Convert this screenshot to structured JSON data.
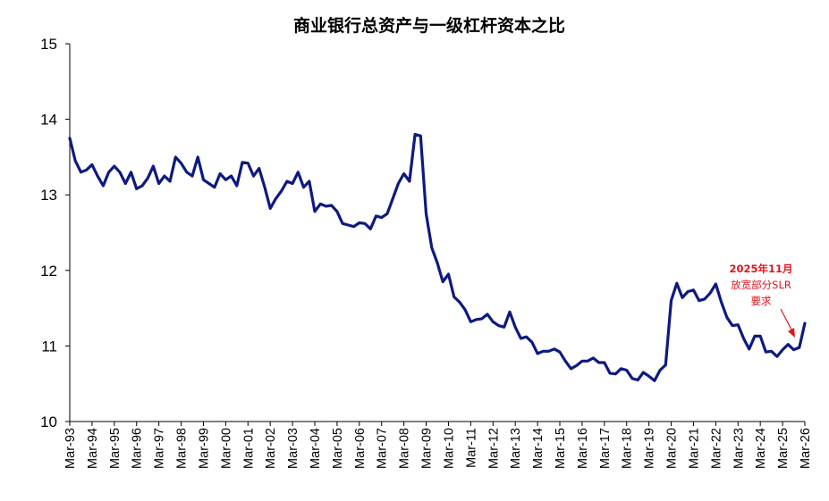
{
  "chart_data": {
    "type": "line",
    "title": "商业银行总资产与一级杠杆资本之比",
    "xlabel": "",
    "ylabel": "",
    "ylim": [
      10,
      15
    ],
    "yticks": [
      "10",
      "11",
      "12",
      "13",
      "14",
      "15"
    ],
    "x_tick_labels": [
      "Mar-93",
      "Mar-94",
      "Mar-95",
      "Mar-96",
      "Mar-97",
      "Mar-98",
      "Mar-99",
      "Mar-00",
      "Mar-01",
      "Mar-02",
      "Mar-03",
      "Mar-04",
      "Mar-05",
      "Mar-06",
      "Mar-07",
      "Mar-08",
      "Mar-09",
      "Mar-10",
      "Mar-11",
      "Mar-12",
      "Mar-13",
      "Mar-14",
      "Mar-15",
      "Mar-16",
      "Mar-17",
      "Mar-18",
      "Mar-19",
      "Mar-20",
      "Mar-21",
      "Mar-22",
      "Mar-23",
      "Mar-24",
      "Mar-25",
      "Mar-26"
    ],
    "grid": false,
    "line_color": "#0d1a80",
    "annotation_color": "#e0141e",
    "series": [
      {
        "values": [
          13.75,
          13.45,
          13.3,
          13.33,
          13.4,
          13.25,
          13.12,
          13.3,
          13.38,
          13.3,
          13.15,
          13.3,
          13.08,
          13.12,
          13.22,
          13.38,
          13.15,
          13.25,
          13.18,
          13.5,
          13.42,
          13.3,
          13.25,
          13.5,
          13.2,
          13.15,
          13.1,
          13.28,
          13.2,
          13.25,
          13.12,
          13.43,
          13.42,
          13.25,
          13.35,
          13.1,
          12.82,
          12.95,
          13.05,
          13.18,
          13.15,
          13.3,
          13.1,
          13.18,
          12.78,
          12.88,
          12.85,
          12.86,
          12.78,
          12.62,
          12.6,
          12.58,
          12.63,
          12.62,
          12.55,
          12.72,
          12.7,
          12.75,
          12.95,
          13.15,
          13.28,
          13.18,
          13.8,
          13.78,
          12.75,
          12.3,
          12.1,
          11.85,
          11.95,
          11.65,
          11.58,
          11.48,
          11.32,
          11.35,
          11.36,
          11.42,
          11.32,
          11.27,
          11.25,
          11.45,
          11.25,
          11.1,
          11.12,
          11.05,
          10.9,
          10.93,
          10.93,
          10.96,
          10.92,
          10.8,
          10.7,
          10.74,
          10.8,
          10.8,
          10.84,
          10.78,
          10.78,
          10.64,
          10.63,
          10.7,
          10.68,
          10.57,
          10.55,
          10.65,
          10.6,
          10.54,
          10.68,
          10.75,
          11.6,
          11.83,
          11.64,
          11.72,
          11.74,
          11.6,
          11.62,
          11.7,
          11.82,
          11.58,
          11.38,
          11.27,
          11.28,
          11.1,
          10.96,
          11.13,
          11.13,
          10.92,
          10.93,
          10.86,
          10.95,
          11.02,
          10.95,
          10.98,
          11.3
        ]
      }
    ],
    "annotation": {
      "line1": "2025年11月",
      "line2": "放宽部分SLR",
      "line3": "要求"
    }
  }
}
